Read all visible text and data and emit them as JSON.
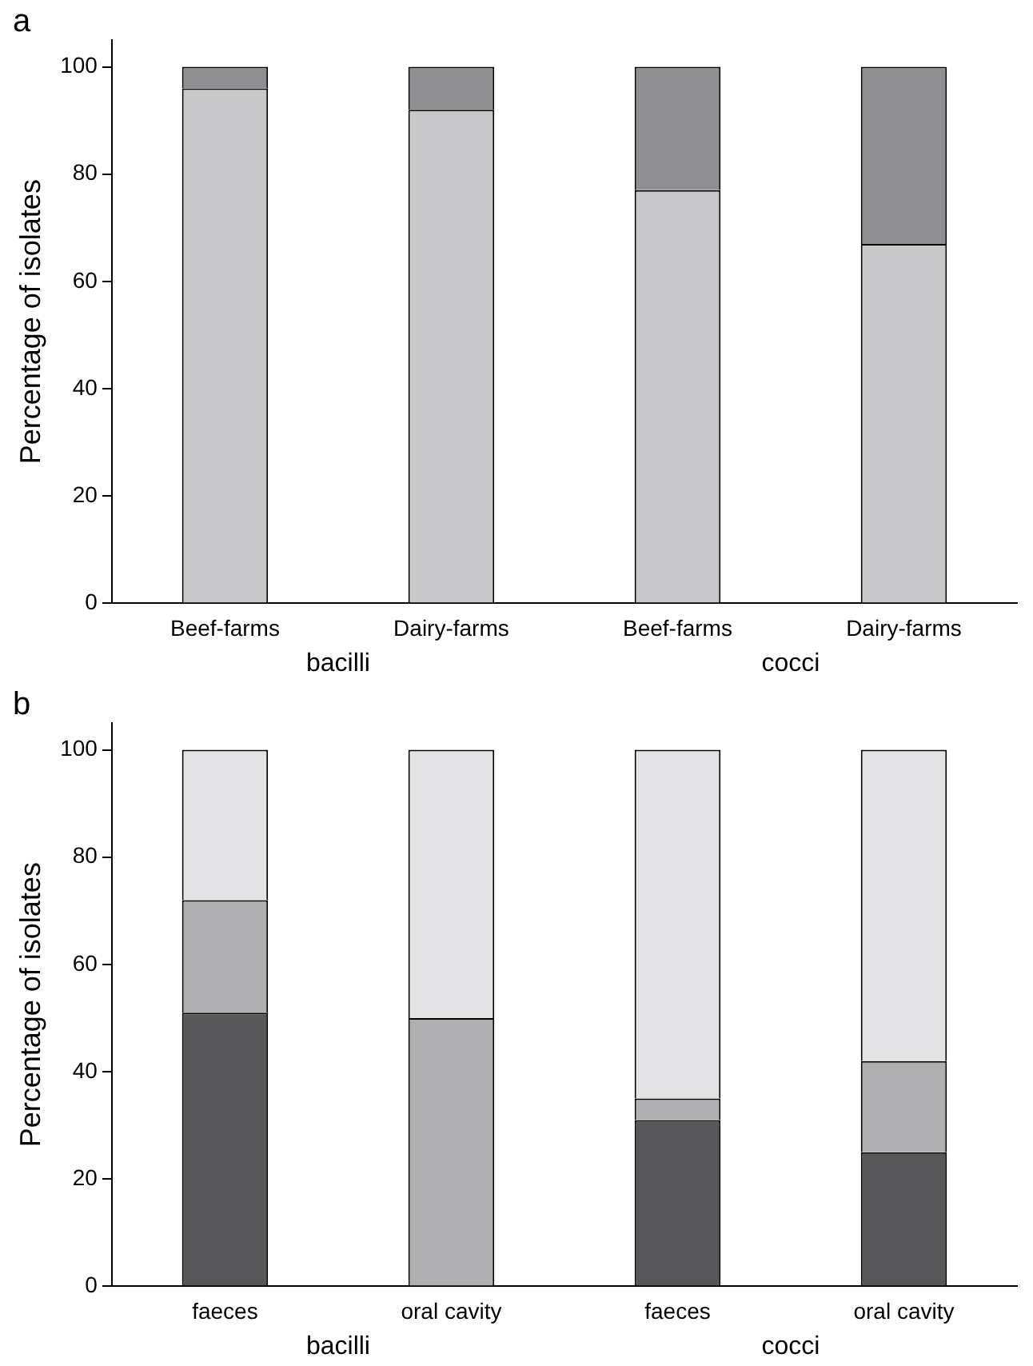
{
  "chart_data": [
    {
      "type": "bar",
      "title": "a",
      "ylabel": "Percentage of isolates",
      "categories": [
        "Beef-farms",
        "Dairy-farms",
        "Beef-farms",
        "Dairy-farms"
      ],
      "stacked": true,
      "ylim": [
        0,
        105
      ],
      "yticks": [
        0,
        20,
        40,
        60,
        80,
        100
      ],
      "grid": false,
      "legend": false,
      "annotations": [
        "bacilli",
        "cocci"
      ],
      "series": [
        {
          "color": "#c8c8ca",
          "values": [
            96,
            92,
            77,
            67
          ]
        },
        {
          "color": "#8f8f93",
          "values": [
            4,
            8,
            23,
            33
          ]
        }
      ]
    },
    {
      "type": "bar",
      "title": "b",
      "ylabel": "Percentage of isolates",
      "categories": [
        "faeces",
        "oral cavity",
        "faeces",
        "oral cavity"
      ],
      "stacked": true,
      "ylim": [
        0,
        105
      ],
      "yticks": [
        0,
        20,
        40,
        60,
        80,
        100
      ],
      "grid": false,
      "legend": false,
      "annotations": [
        "bacilli",
        "cocci"
      ],
      "series": [
        {
          "color": "#58585b",
          "values": [
            51,
            0,
            31,
            25
          ]
        },
        {
          "color": "#b0b0b3",
          "values": [
            21,
            50,
            4,
            17
          ]
        },
        {
          "color": "#e3e3e5",
          "values": [
            28,
            50,
            65,
            58
          ]
        }
      ]
    }
  ]
}
